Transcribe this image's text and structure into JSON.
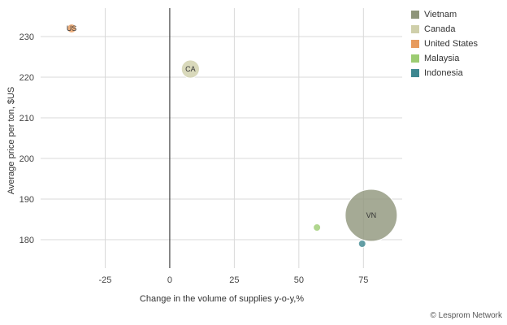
{
  "chart_data": {
    "type": "scatter",
    "xlabel": "Change in the volume of supplies y-o-y,%",
    "ylabel": "Average price per ton, $US",
    "xlim": [
      -50,
      90
    ],
    "ylim": [
      173,
      237
    ],
    "x_ticks": [
      -25,
      0,
      25,
      50,
      75
    ],
    "y_ticks": [
      180,
      190,
      200,
      210,
      220,
      230
    ],
    "grid": true,
    "legend_position": "top-right",
    "series": [
      {
        "name": "Vietnam",
        "color": "#8e957a",
        "label": "VN",
        "x": 78,
        "y": 186,
        "size": 100
      },
      {
        "name": "Canada",
        "color": "#cfcfaa",
        "label": "CA",
        "x": 8,
        "y": 222,
        "size": 12
      },
      {
        "name": "United States",
        "color": "#e79b5e",
        "label": "US",
        "x": -38,
        "y": 232,
        "size": 3
      },
      {
        "name": "Malaysia",
        "color": "#9ccc72",
        "label": "",
        "x": 57,
        "y": 183,
        "size": 1
      },
      {
        "name": "Indonesia",
        "color": "#3d8790",
        "label": "",
        "x": 74.5,
        "y": 179,
        "size": 1
      }
    ]
  },
  "credit": "© Lesprom Network"
}
